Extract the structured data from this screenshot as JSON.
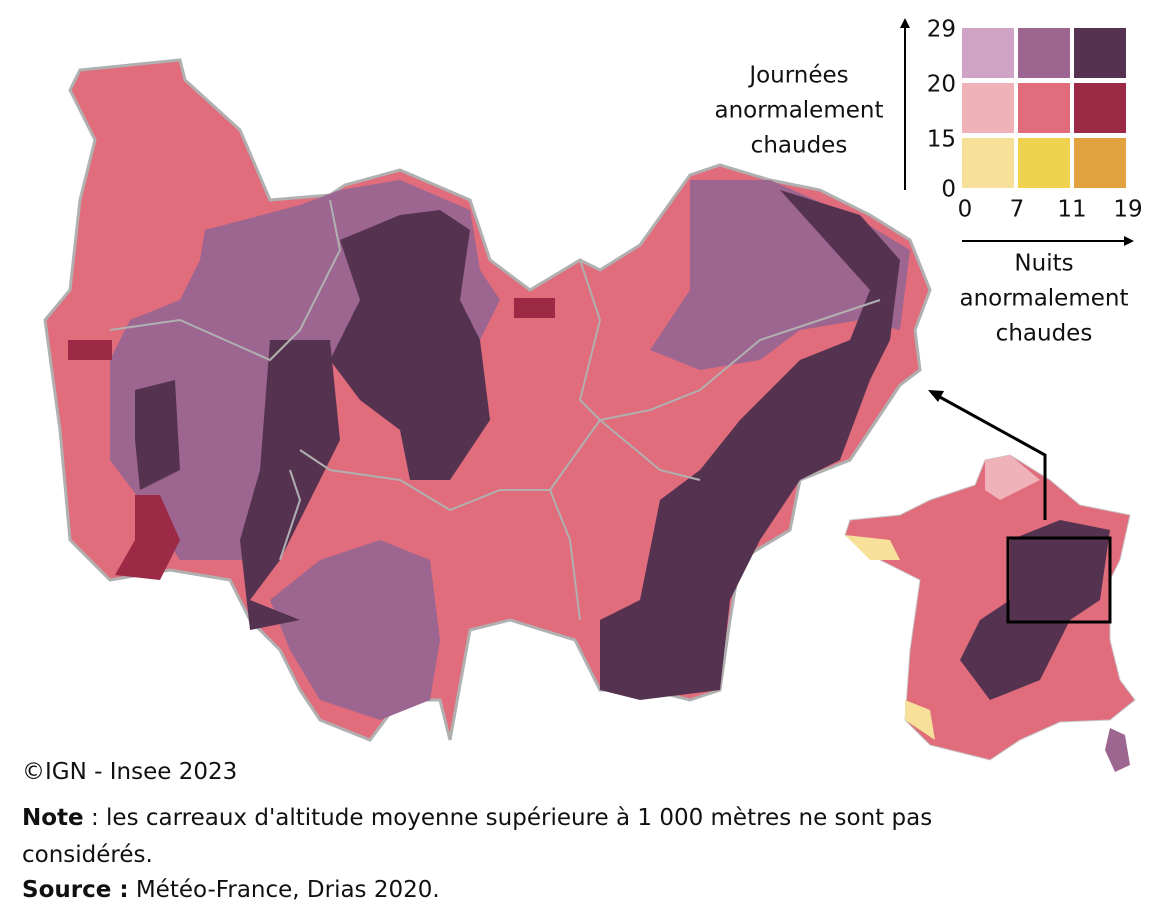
{
  "legend": {
    "y_title": [
      "Journées",
      "anormalement",
      "chaudes"
    ],
    "x_title": [
      "Nuits",
      "anormalement",
      "chaudes"
    ],
    "y_ticks": [
      "29",
      "20",
      "15",
      "0"
    ],
    "x_ticks": [
      "0",
      "7",
      "11",
      "19"
    ],
    "colors": [
      [
        "#cfa3c3",
        "#9d6690",
        "#553350"
      ],
      [
        "#eeb2b8",
        "#e06c7c",
        "#9c2a46"
      ],
      [
        "#f7e09a",
        "#efd34f",
        "#e3a240"
      ]
    ]
  },
  "copyright": "©IGN - Insee 2023",
  "note": {
    "label": "Note",
    "text": " : les carreaux d'altitude moyenne supérieure à 1 000 mètres ne sont pas considérés."
  },
  "source": {
    "label": "Source :",
    "text": " Météo-France, Drias 2020."
  }
}
